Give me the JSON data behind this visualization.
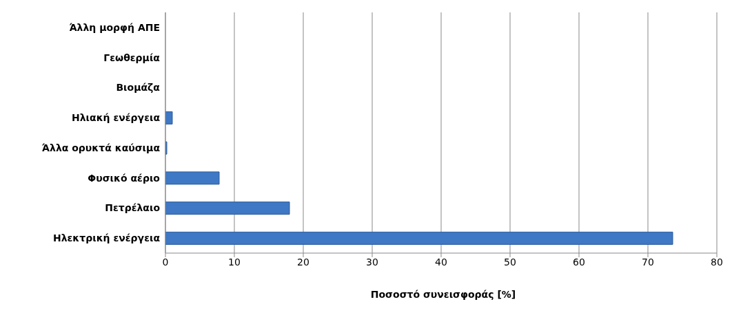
{
  "chart_data": {
    "type": "bar",
    "orientation": "horizontal",
    "xlabel": "Ποσοστό συνεισφοράς [%]",
    "categories": [
      "Άλλη μορφή  ΑΠΕ",
      "Γεωθερμία",
      "Βιομάζα",
      "Ηλιακή ενέργεια",
      "Άλλα ορυκτά καύσιμα",
      "Φυσικό αέριο",
      "Πετρέλαιο",
      "Ηλεκτρική ενέργεια"
    ],
    "values": [
      0,
      0,
      0,
      1.0,
      0.2,
      7.8,
      18.0,
      73.6
    ],
    "color": "#3f78c4",
    "xlim": [
      0,
      80
    ],
    "xticks": [
      0,
      10,
      20,
      30,
      40,
      50,
      60,
      70,
      80
    ],
    "grid": "x",
    "legend": false
  }
}
